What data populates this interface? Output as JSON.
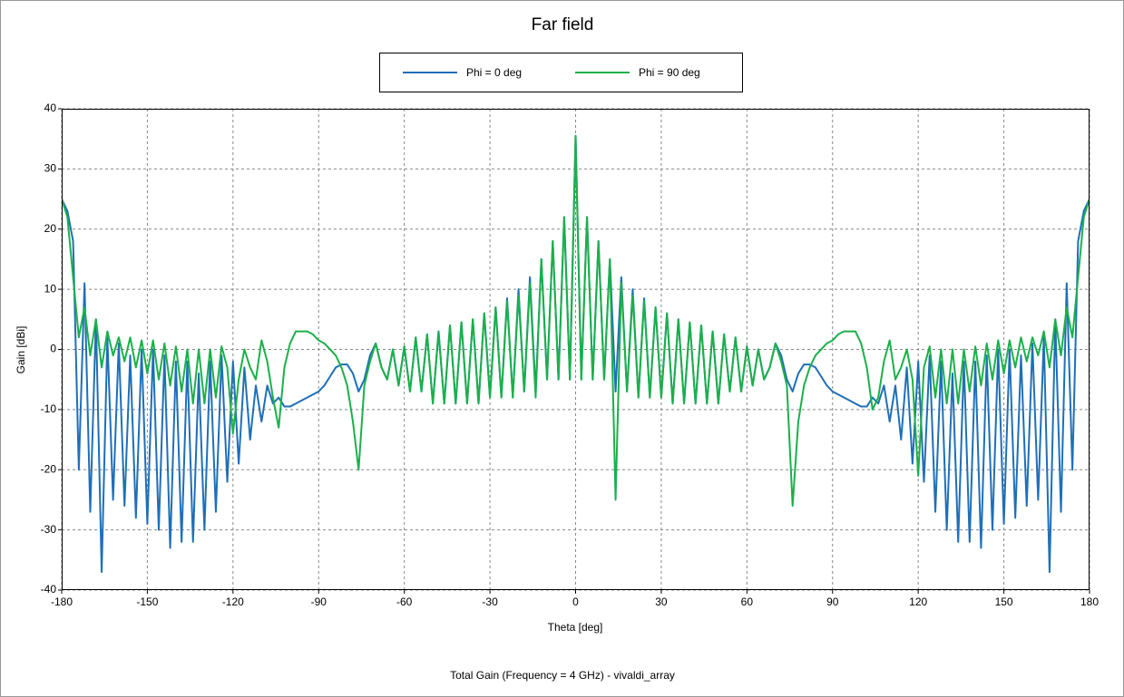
{
  "chart_data": {
    "type": "line",
    "title": "Far field",
    "subtitle": "Total Gain (Frequency = 4 GHz) - vivaldi_array",
    "x_label": "Theta [deg]",
    "y_label": "Gain [dBi]",
    "xlim": [
      -180,
      180
    ],
    "ylim": [
      -40,
      40
    ],
    "xticks": [
      -180,
      -150,
      -120,
      -90,
      -60,
      -30,
      0,
      30,
      60,
      90,
      120,
      150,
      180
    ],
    "yticks": [
      -40,
      -30,
      -20,
      -10,
      0,
      10,
      20,
      30,
      40
    ],
    "grid": true,
    "legend": "top",
    "x": [
      -180,
      -178,
      -176,
      -174,
      -172,
      -170,
      -168,
      -166,
      -164,
      -162,
      -160,
      -158,
      -156,
      -154,
      -152,
      -150,
      -148,
      -146,
      -144,
      -142,
      -140,
      -138,
      -136,
      -134,
      -132,
      -130,
      -128,
      -126,
      -124,
      -122,
      -120,
      -118,
      -116,
      -114,
      -112,
      -110,
      -108,
      -106,
      -104,
      -102,
      -100,
      -98,
      -96,
      -94,
      -92,
      -90,
      -88,
      -86,
      -84,
      -82,
      -80,
      -78,
      -76,
      -74,
      -72,
      -70,
      -68,
      -66,
      -64,
      -62,
      -60,
      -58,
      -56,
      -54,
      -52,
      -50,
      -48,
      -46,
      -44,
      -42,
      -40,
      -38,
      -36,
      -34,
      -32,
      -30,
      -28,
      -26,
      -24,
      -22,
      -20,
      -18,
      -16,
      -14,
      -12,
      -10,
      -8,
      -6,
      -4,
      -2,
      0,
      2,
      4,
      6,
      8,
      10,
      12,
      14,
      16,
      18,
      20,
      22,
      24,
      26,
      28,
      30,
      32,
      34,
      36,
      38,
      40,
      42,
      44,
      46,
      48,
      50,
      52,
      54,
      56,
      58,
      60,
      62,
      64,
      66,
      68,
      70,
      72,
      74,
      76,
      78,
      80,
      82,
      84,
      86,
      88,
      90,
      92,
      94,
      96,
      98,
      100,
      102,
      104,
      106,
      108,
      110,
      112,
      114,
      116,
      118,
      120,
      122,
      124,
      126,
      128,
      130,
      132,
      134,
      136,
      138,
      140,
      142,
      144,
      146,
      148,
      150,
      152,
      154,
      156,
      158,
      160,
      162,
      164,
      166,
      168,
      170,
      172,
      174,
      176,
      178,
      180
    ],
    "series": [
      {
        "name": "Phi = 0 deg",
        "color": "#1f6fb8",
        "values": [
          25,
          23,
          18,
          -20,
          11,
          -27,
          5,
          -37,
          2,
          -25,
          1,
          -26,
          -1,
          -28,
          0,
          -29,
          0,
          -30,
          -1,
          -33,
          -2,
          -32,
          -2,
          -32,
          -4,
          -30,
          -2,
          -27,
          -1,
          -22,
          -2,
          -19,
          -3,
          -15,
          -6,
          -12,
          -6,
          -9,
          -8,
          -9.5,
          -9.5,
          -9,
          -8.5,
          -8,
          -7.5,
          -7,
          -6,
          -4.5,
          -3,
          -2.5,
          -2.5,
          -4,
          -7,
          -5,
          -1,
          1,
          -3,
          -5,
          0,
          -6,
          0.5,
          -7,
          2,
          -7,
          2.5,
          -9,
          3,
          -9,
          4,
          -9,
          4.5,
          -9,
          5,
          -9,
          6,
          -8,
          7,
          -8,
          8.5,
          -8,
          10,
          -7,
          12,
          -7,
          15,
          -5,
          18,
          -5,
          22,
          -5,
          35.5,
          -5,
          22,
          -5,
          18,
          -5,
          15,
          -7,
          12,
          -7,
          10,
          -8,
          8.5,
          -8,
          7,
          -8,
          6,
          -9,
          5,
          -9,
          4.5,
          -9,
          4,
          -9,
          3,
          -9,
          2.5,
          -7,
          2,
          -7,
          0.5,
          -6,
          0,
          -5,
          -3,
          1,
          -1,
          -5,
          -7,
          -4,
          -2.5,
          -2.5,
          -3,
          -4.5,
          -6,
          -7,
          -7.5,
          -8,
          -8.5,
          -9,
          -9.5,
          -9.5,
          -8,
          -9,
          -6,
          -12,
          -6,
          -15,
          -3,
          -19,
          -2,
          -22,
          -1,
          -27,
          -2,
          -30,
          -4,
          -32,
          -2,
          -32,
          -2,
          -33,
          -1,
          -30,
          0,
          -29,
          0,
          -28,
          -1,
          -26,
          1,
          -25,
          2,
          -37,
          5,
          -27,
          11,
          -20,
          18,
          23,
          25
        ]
      },
      {
        "name": "Phi = 90 deg",
        "color": "#1bb04a",
        "values": [
          25,
          22,
          12,
          2,
          7,
          -1,
          5,
          -3,
          3,
          -1,
          2,
          -2,
          2,
          -3,
          1.5,
          -4,
          1.5,
          -5,
          1,
          -6,
          0.5,
          -7,
          0,
          -9,
          0,
          -9,
          0,
          -8,
          0.5,
          -3,
          -14,
          -5,
          0,
          -3,
          -5,
          1.5,
          -2,
          -8,
          -13,
          -3,
          1,
          3,
          3,
          3,
          2.5,
          1.5,
          1,
          0,
          -1,
          -3,
          -6,
          -12,
          -20,
          -6,
          -2,
          1,
          -3,
          -5,
          0,
          -6,
          0.5,
          -7,
          2,
          -7,
          2.5,
          -9,
          3,
          -9,
          4,
          -9,
          4.5,
          -9,
          5,
          -9,
          6,
          -8,
          7,
          -8,
          8,
          -8,
          9,
          -7,
          11,
          -8,
          15,
          -5,
          18,
          -5,
          22,
          -5,
          35.5,
          -5,
          22,
          -5,
          18,
          -5,
          15,
          -25,
          11,
          -7,
          9,
          -8,
          8,
          -8,
          7,
          -8,
          6,
          -9,
          5,
          -9,
          4.5,
          -9,
          4,
          -9,
          3,
          -9,
          2.5,
          -7,
          2,
          -7,
          0.5,
          -6,
          0,
          -5,
          -3,
          1,
          -2,
          -6,
          -26,
          -12,
          -6,
          -3,
          -1,
          0,
          1,
          1.5,
          2.5,
          3,
          3,
          3,
          1,
          -3,
          -10,
          -8,
          -2,
          1.5,
          -5,
          -3,
          0,
          -5,
          -21,
          -3,
          0.5,
          -8,
          0,
          -9,
          0,
          -9,
          0,
          -7,
          0.5,
          -6,
          1,
          -5,
          1.5,
          -4,
          1.5,
          -3,
          2,
          -2,
          2,
          -1,
          3,
          -3,
          5,
          -1,
          7,
          2,
          12,
          22,
          25
        ]
      }
    ]
  }
}
